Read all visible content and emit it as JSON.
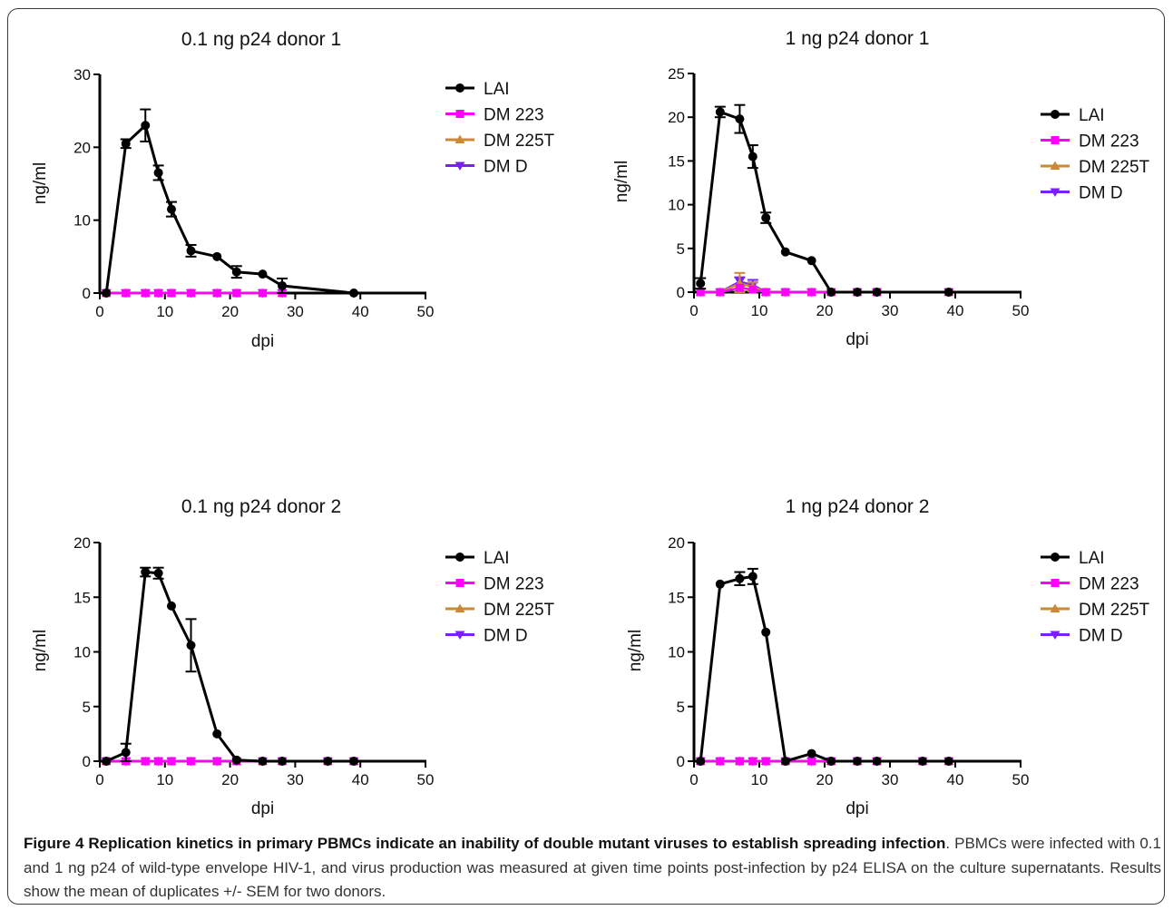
{
  "legend_entries": [
    "LAI",
    "DM 223",
    "DM 225T",
    "DM D"
  ],
  "colors": {
    "LAI": "#000000",
    "DM 223": "#ff00ff",
    "DM 225T": "#cc8833",
    "DM D": "#7a1fff"
  },
  "chart_data": [
    {
      "type": "line",
      "title": "0.1 ng p24 donor 1",
      "xlabel": "dpi",
      "ylabel": "ng/ml",
      "xlim": [
        0,
        50
      ],
      "ylim": [
        0,
        30
      ],
      "xticks": [
        0,
        10,
        20,
        30,
        40,
        50
      ],
      "yticks": [
        0,
        10,
        20,
        30
      ],
      "legend_position": "right",
      "series": [
        {
          "name": "LAI",
          "x": [
            1,
            4,
            7,
            9,
            11,
            14,
            18,
            21,
            25,
            28,
            39
          ],
          "y": [
            0,
            20.5,
            23,
            16.5,
            11.5,
            5.8,
            5,
            2.9,
            2.6,
            1,
            0
          ],
          "err": [
            0,
            0.6,
            2.2,
            1,
            1,
            0.8,
            0,
            0.8,
            0,
            1,
            0
          ]
        },
        {
          "name": "DM 223",
          "x": [
            1,
            4,
            7,
            9,
            11,
            14,
            18,
            21,
            25,
            28
          ],
          "y": [
            0,
            0,
            0,
            0,
            0,
            0,
            0,
            0,
            0,
            0
          ]
        },
        {
          "name": "DM 225T",
          "x": [
            1,
            4,
            7,
            9,
            11,
            14,
            18,
            21,
            25,
            28
          ],
          "y": [
            0,
            0,
            0,
            0,
            0,
            0,
            0,
            0,
            0,
            0
          ]
        },
        {
          "name": "DM D",
          "x": [
            1,
            4,
            7,
            9,
            11,
            14,
            18,
            21,
            25,
            28
          ],
          "y": [
            0,
            0,
            0,
            0,
            0,
            0,
            0,
            0,
            0,
            0
          ]
        }
      ]
    },
    {
      "type": "line",
      "title": "1 ng p24 donor 1",
      "xlabel": "dpi",
      "ylabel": "ng/ml",
      "xlim": [
        0,
        50
      ],
      "ylim": [
        0,
        25
      ],
      "xticks": [
        0,
        10,
        20,
        30,
        40,
        50
      ],
      "yticks": [
        0,
        5,
        10,
        15,
        20,
        25
      ],
      "legend_position": "right",
      "series": [
        {
          "name": "LAI",
          "x": [
            1,
            4,
            7,
            9,
            11,
            14,
            18,
            21,
            25,
            28,
            39
          ],
          "y": [
            1,
            20.6,
            19.8,
            15.5,
            8.5,
            4.6,
            3.6,
            0,
            0,
            0,
            0
          ],
          "err": [
            0.6,
            0.6,
            1.6,
            1.3,
            0.6,
            0,
            0,
            0,
            0,
            0,
            0
          ]
        },
        {
          "name": "DM 223",
          "x": [
            1,
            4,
            7,
            9,
            11,
            14,
            18,
            21,
            25,
            28,
            39
          ],
          "y": [
            0,
            0,
            0.5,
            0.3,
            0,
            0,
            0,
            0,
            0,
            0,
            0
          ]
        },
        {
          "name": "DM 225T",
          "x": [
            1,
            4,
            7,
            9,
            11,
            14,
            18,
            21,
            25,
            28,
            39
          ],
          "y": [
            0,
            0,
            1,
            0.6,
            0,
            0,
            0,
            0,
            0,
            0,
            0
          ],
          "err": [
            0,
            0,
            1.2,
            0.5,
            0,
            0,
            0,
            0,
            0,
            0,
            0
          ]
        },
        {
          "name": "DM D",
          "x": [
            1,
            4,
            7,
            9,
            11,
            14,
            18,
            21,
            25,
            28,
            39
          ],
          "y": [
            0,
            0,
            1.2,
            0.8,
            0,
            0,
            0,
            0,
            0,
            0,
            0
          ],
          "err": [
            0,
            0,
            0.5,
            0.6,
            0,
            0,
            0,
            0,
            0,
            0,
            0
          ]
        }
      ]
    },
    {
      "type": "line",
      "title": "0.1 ng p24 donor 2",
      "xlabel": "dpi",
      "ylabel": "ng/ml",
      "xlim": [
        0,
        50
      ],
      "ylim": [
        0,
        20
      ],
      "xticks": [
        0,
        10,
        20,
        30,
        40,
        50
      ],
      "yticks": [
        0,
        5,
        10,
        15,
        20
      ],
      "legend_position": "right",
      "series": [
        {
          "name": "LAI",
          "x": [
            1,
            4,
            7,
            9,
            11,
            14,
            18,
            21,
            25,
            28,
            35,
            39
          ],
          "y": [
            0,
            0.8,
            17.3,
            17.2,
            14.2,
            10.6,
            2.5,
            0.1,
            0,
            0,
            0,
            0
          ],
          "err": [
            0,
            0.8,
            0.4,
            0.5,
            0,
            2.4,
            0,
            0,
            0,
            0,
            0,
            0
          ]
        },
        {
          "name": "DM 223",
          "x": [
            1,
            4,
            7,
            9,
            11,
            14,
            18,
            21,
            25,
            28,
            35,
            39
          ],
          "y": [
            0,
            0,
            0,
            0,
            0,
            0,
            0,
            0,
            0,
            0,
            0,
            0
          ]
        },
        {
          "name": "DM 225T",
          "x": [
            1,
            4,
            7,
            9,
            11,
            14,
            18,
            21,
            25,
            28,
            35,
            39
          ],
          "y": [
            0,
            0,
            0,
            0,
            0,
            0,
            0,
            0,
            0,
            0,
            0,
            0
          ]
        },
        {
          "name": "DM D",
          "x": [
            1,
            4,
            7,
            9,
            11,
            14,
            18,
            21,
            25,
            28,
            35,
            39
          ],
          "y": [
            0,
            0,
            0,
            0,
            0,
            0,
            0,
            0,
            0,
            0,
            0,
            0
          ]
        }
      ]
    },
    {
      "type": "line",
      "title": "1 ng p24 donor 2",
      "xlabel": "dpi",
      "ylabel": "ng/ml",
      "xlim": [
        0,
        50
      ],
      "ylim": [
        0,
        20
      ],
      "xticks": [
        0,
        10,
        20,
        30,
        40,
        50
      ],
      "yticks": [
        0,
        5,
        10,
        15,
        20
      ],
      "legend_position": "right",
      "series": [
        {
          "name": "LAI",
          "x": [
            1,
            4,
            7,
            9,
            11,
            14,
            18,
            21,
            25,
            28,
            35,
            39
          ],
          "y": [
            0,
            16.2,
            16.7,
            16.9,
            11.8,
            0,
            0.7,
            0,
            0,
            0,
            0,
            0
          ],
          "err": [
            0,
            0,
            0.6,
            0.7,
            0,
            0,
            0,
            0,
            0,
            0,
            0,
            0
          ]
        },
        {
          "name": "DM 223",
          "x": [
            1,
            4,
            7,
            9,
            11,
            14,
            18,
            21,
            25,
            28,
            35,
            39
          ],
          "y": [
            0,
            0,
            0,
            0,
            0,
            0,
            0,
            0,
            0,
            0,
            0,
            0
          ]
        },
        {
          "name": "DM 225T",
          "x": [
            1,
            4,
            7,
            9,
            11,
            14,
            18,
            21,
            25,
            28,
            35,
            39
          ],
          "y": [
            0,
            0,
            0,
            0,
            0,
            0,
            0,
            0,
            0,
            0,
            0,
            0
          ]
        },
        {
          "name": "DM D",
          "x": [
            1,
            4,
            7,
            9,
            11,
            14,
            18,
            21,
            25,
            28,
            35,
            39
          ],
          "y": [
            0,
            0,
            0,
            0,
            0,
            0,
            0,
            0,
            0,
            0,
            0,
            0
          ]
        }
      ]
    }
  ],
  "caption": {
    "label": "Figure 4 Replication kinetics in primary PBMCs indicate an inability of double mutant viruses to establish spreading infection",
    "text": ". PBMCs were infected with 0.1 and 1 ng p24 of wild-type envelope HIV-1, and virus production was measured at given time points post-infection by p24 ELISA on the culture supernatants. Results show the mean of duplicates +/- SEM for two donors."
  }
}
